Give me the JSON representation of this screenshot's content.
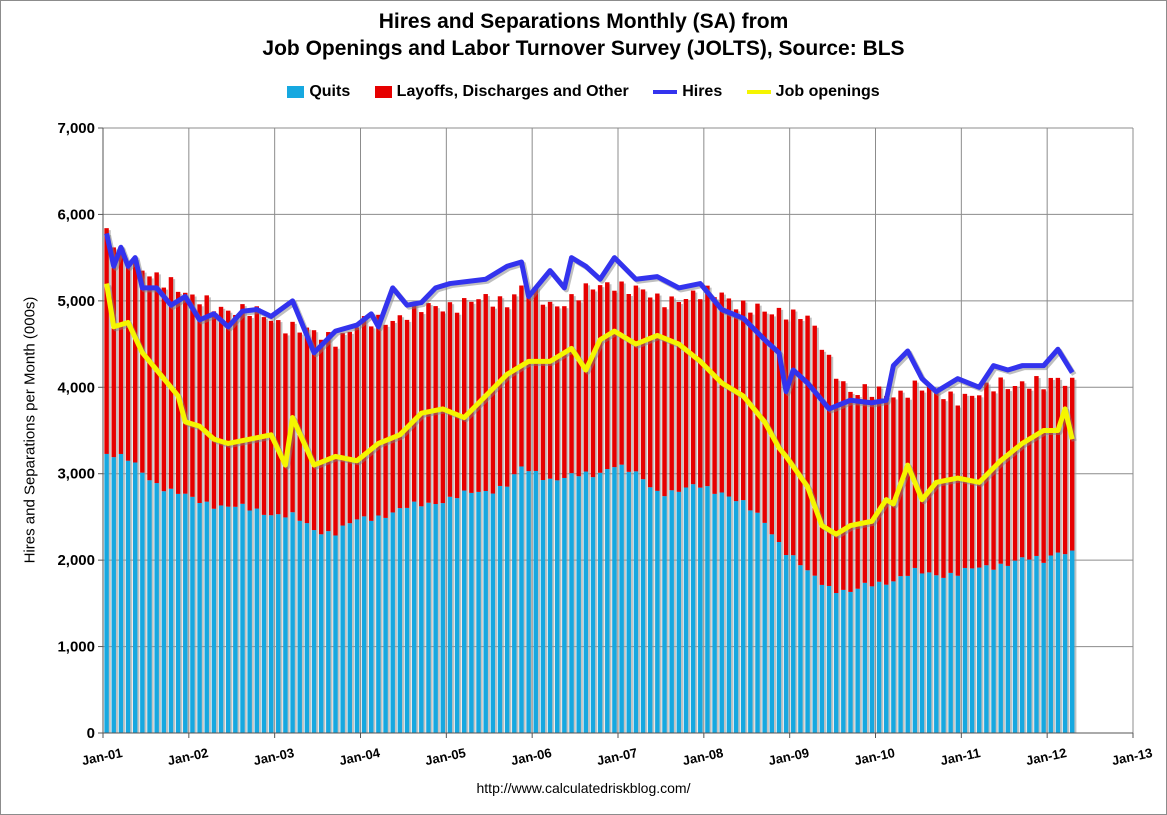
{
  "chart_data": {
    "type": "bar",
    "title": "Hires and Separations Monthly (SA) from",
    "subtitle": "Job Openings and Labor Turnover Survey (JOLTS), Source: BLS",
    "ylabel": "Hires and Separations per Month (000s)",
    "xlabel": "",
    "ylim": [
      0,
      7000
    ],
    "yticks": [
      "0",
      "1,000",
      "2,000",
      "3,000",
      "4,000",
      "5,000",
      "6,000",
      "7,000"
    ],
    "xticks": [
      "Jan-01",
      "Jan-02",
      "Jan-03",
      "Jan-04",
      "Jan-05",
      "Jan-06",
      "Jan-07",
      "Jan-08",
      "Jan-09",
      "Jan-10",
      "Jan-11",
      "Jan-12",
      "Jan-13"
    ],
    "grid": true,
    "legend_position": "top",
    "source": "http://www.calculatedriskblog.com/",
    "x_start": "2001-01",
    "x_end": "2012-04",
    "series": [
      {
        "name": "Quits",
        "kind": "stacked-bar",
        "color": "#16a8e0",
        "anchors": [
          [
            "2001-01",
            3250
          ],
          [
            "2001-04",
            3150
          ],
          [
            "2001-07",
            2950
          ],
          [
            "2001-10",
            2800
          ],
          [
            "2002-01",
            2700
          ],
          [
            "2002-06",
            2620
          ],
          [
            "2002-12",
            2550
          ],
          [
            "2003-03",
            2500
          ],
          [
            "2003-06",
            2350
          ],
          [
            "2003-09",
            2330
          ],
          [
            "2003-12",
            2450
          ],
          [
            "2004-06",
            2580
          ],
          [
            "2004-12",
            2700
          ],
          [
            "2005-06",
            2800
          ],
          [
            "2005-09",
            2880
          ],
          [
            "2005-11",
            3050
          ],
          [
            "2006-03",
            2950
          ],
          [
            "2006-09",
            2980
          ],
          [
            "2006-12",
            3120
          ],
          [
            "2007-03",
            2980
          ],
          [
            "2007-06",
            2800
          ],
          [
            "2007-09",
            2800
          ],
          [
            "2007-12",
            2850
          ],
          [
            "2008-03",
            2800
          ],
          [
            "2008-06",
            2640
          ],
          [
            "2008-09",
            2450
          ],
          [
            "2008-12",
            2100
          ],
          [
            "2009-03",
            1850
          ],
          [
            "2009-06",
            1700
          ],
          [
            "2009-09",
            1620
          ],
          [
            "2009-12",
            1720
          ],
          [
            "2010-03",
            1780
          ],
          [
            "2010-06",
            1850
          ],
          [
            "2010-09",
            1840
          ],
          [
            "2010-12",
            1850
          ],
          [
            "2011-03",
            1900
          ],
          [
            "2011-06",
            1960
          ],
          [
            "2011-09",
            2000
          ],
          [
            "2011-12",
            2000
          ],
          [
            "2012-02",
            2120
          ],
          [
            "2012-04",
            2080
          ]
        ]
      },
      {
        "name": "Layoffs, Discharges and Other",
        "kind": "stacked-bar",
        "color": "#e60000",
        "anchors": [
          [
            "2001-01",
            2600
          ],
          [
            "2001-03",
            2400
          ],
          [
            "2001-06",
            2300
          ],
          [
            "2001-10",
            2450
          ],
          [
            "2002-01",
            2300
          ],
          [
            "2002-06",
            2300
          ],
          [
            "2002-12",
            2250
          ],
          [
            "2003-03",
            2200
          ],
          [
            "2003-06",
            2250
          ],
          [
            "2003-09",
            2250
          ],
          [
            "2003-12",
            2250
          ],
          [
            "2004-06",
            2250
          ],
          [
            "2004-12",
            2250
          ],
          [
            "2005-06",
            2200
          ],
          [
            "2005-11",
            2100
          ],
          [
            "2006-03",
            2000
          ],
          [
            "2006-09",
            2150
          ],
          [
            "2006-12",
            2100
          ],
          [
            "2007-03",
            2150
          ],
          [
            "2007-06",
            2200
          ],
          [
            "2007-09",
            2250
          ],
          [
            "2007-12",
            2200
          ],
          [
            "2008-03",
            2300
          ],
          [
            "2008-06",
            2300
          ],
          [
            "2008-09",
            2400
          ],
          [
            "2008-12",
            2800
          ],
          [
            "2009-03",
            2950
          ],
          [
            "2009-06",
            2600
          ],
          [
            "2009-09",
            2350
          ],
          [
            "2009-12",
            2200
          ],
          [
            "2010-03",
            2150
          ],
          [
            "2010-06",
            2150
          ],
          [
            "2010-09",
            2100
          ],
          [
            "2010-12",
            2050
          ],
          [
            "2011-03",
            2000
          ],
          [
            "2011-06",
            2100
          ],
          [
            "2011-09",
            2050
          ],
          [
            "2011-12",
            2000
          ],
          [
            "2012-02",
            2000
          ],
          [
            "2012-04",
            2000
          ]
        ]
      },
      {
        "name": "Hires",
        "kind": "line",
        "color": "#3333ee",
        "points": [
          [
            "2001-01",
            5780
          ],
          [
            "2001-02",
            5400
          ],
          [
            "2001-03",
            5620
          ],
          [
            "2001-04",
            5400
          ],
          [
            "2001-05",
            5500
          ],
          [
            "2001-06",
            5150
          ],
          [
            "2001-08",
            5150
          ],
          [
            "2001-10",
            4950
          ],
          [
            "2001-12",
            5050
          ],
          [
            "2002-02",
            4780
          ],
          [
            "2002-04",
            4850
          ],
          [
            "2002-06",
            4700
          ],
          [
            "2002-08",
            4880
          ],
          [
            "2002-10",
            4900
          ],
          [
            "2002-12",
            4820
          ],
          [
            "2003-03",
            5000
          ],
          [
            "2003-06",
            4400
          ],
          [
            "2003-09",
            4650
          ],
          [
            "2003-12",
            4720
          ],
          [
            "2004-02",
            4850
          ],
          [
            "2004-03",
            4700
          ],
          [
            "2004-05",
            5150
          ],
          [
            "2004-07",
            4950
          ],
          [
            "2004-09",
            4980
          ],
          [
            "2004-11",
            5150
          ],
          [
            "2005-01",
            5200
          ],
          [
            "2005-06",
            5250
          ],
          [
            "2005-09",
            5400
          ],
          [
            "2005-11",
            5450
          ],
          [
            "2005-12",
            5050
          ],
          [
            "2006-03",
            5350
          ],
          [
            "2006-05",
            5150
          ],
          [
            "2006-06",
            5500
          ],
          [
            "2006-08",
            5400
          ],
          [
            "2006-10",
            5250
          ],
          [
            "2006-12",
            5500
          ],
          [
            "2007-03",
            5250
          ],
          [
            "2007-06",
            5280
          ],
          [
            "2007-09",
            5150
          ],
          [
            "2007-12",
            5200
          ],
          [
            "2008-03",
            4900
          ],
          [
            "2008-06",
            4800
          ],
          [
            "2008-09",
            4550
          ],
          [
            "2008-11",
            4400
          ],
          [
            "2008-12",
            3950
          ],
          [
            "2009-01",
            4200
          ],
          [
            "2009-03",
            4050
          ],
          [
            "2009-06",
            3750
          ],
          [
            "2009-09",
            3850
          ],
          [
            "2009-12",
            3820
          ],
          [
            "2010-02",
            3850
          ],
          [
            "2010-03",
            4250
          ],
          [
            "2010-05",
            4420
          ],
          [
            "2010-07",
            4100
          ],
          [
            "2010-09",
            3950
          ],
          [
            "2010-12",
            4100
          ],
          [
            "2011-03",
            4000
          ],
          [
            "2011-05",
            4250
          ],
          [
            "2011-07",
            4200
          ],
          [
            "2011-09",
            4250
          ],
          [
            "2011-12",
            4250
          ],
          [
            "2012-02",
            4440
          ],
          [
            "2012-04",
            4170
          ]
        ]
      },
      {
        "name": "Job openings",
        "kind": "line",
        "color": "#f5f500",
        "points": [
          [
            "2001-01",
            5200
          ],
          [
            "2001-02",
            4700
          ],
          [
            "2001-04",
            4750
          ],
          [
            "2001-06",
            4400
          ],
          [
            "2001-09",
            4100
          ],
          [
            "2001-11",
            3900
          ],
          [
            "2001-12",
            3600
          ],
          [
            "2002-02",
            3550
          ],
          [
            "2002-04",
            3400
          ],
          [
            "2002-06",
            3350
          ],
          [
            "2002-09",
            3400
          ],
          [
            "2002-12",
            3450
          ],
          [
            "2003-02",
            3100
          ],
          [
            "2003-03",
            3650
          ],
          [
            "2003-06",
            3100
          ],
          [
            "2003-09",
            3200
          ],
          [
            "2003-12",
            3150
          ],
          [
            "2004-03",
            3350
          ],
          [
            "2004-06",
            3450
          ],
          [
            "2004-09",
            3700
          ],
          [
            "2004-12",
            3750
          ],
          [
            "2005-03",
            3650
          ],
          [
            "2005-06",
            3900
          ],
          [
            "2005-09",
            4150
          ],
          [
            "2005-12",
            4300
          ],
          [
            "2006-03",
            4300
          ],
          [
            "2006-06",
            4450
          ],
          [
            "2006-08",
            4200
          ],
          [
            "2006-10",
            4550
          ],
          [
            "2006-12",
            4650
          ],
          [
            "2007-03",
            4500
          ],
          [
            "2007-06",
            4600
          ],
          [
            "2007-09",
            4500
          ],
          [
            "2007-12",
            4300
          ],
          [
            "2008-03",
            4050
          ],
          [
            "2008-06",
            3900
          ],
          [
            "2008-09",
            3600
          ],
          [
            "2008-11",
            3300
          ],
          [
            "2008-12",
            3200
          ],
          [
            "2009-03",
            2850
          ],
          [
            "2009-05",
            2400
          ],
          [
            "2009-07",
            2300
          ],
          [
            "2009-09",
            2400
          ],
          [
            "2009-12",
            2450
          ],
          [
            "2010-02",
            2700
          ],
          [
            "2010-03",
            2650
          ],
          [
            "2010-05",
            3100
          ],
          [
            "2010-07",
            2700
          ],
          [
            "2010-09",
            2900
          ],
          [
            "2010-12",
            2950
          ],
          [
            "2011-03",
            2900
          ],
          [
            "2011-06",
            3150
          ],
          [
            "2011-09",
            3350
          ],
          [
            "2011-12",
            3500
          ],
          [
            "2012-02",
            3500
          ],
          [
            "2012-03",
            3750
          ],
          [
            "2012-04",
            3400
          ]
        ]
      }
    ]
  }
}
